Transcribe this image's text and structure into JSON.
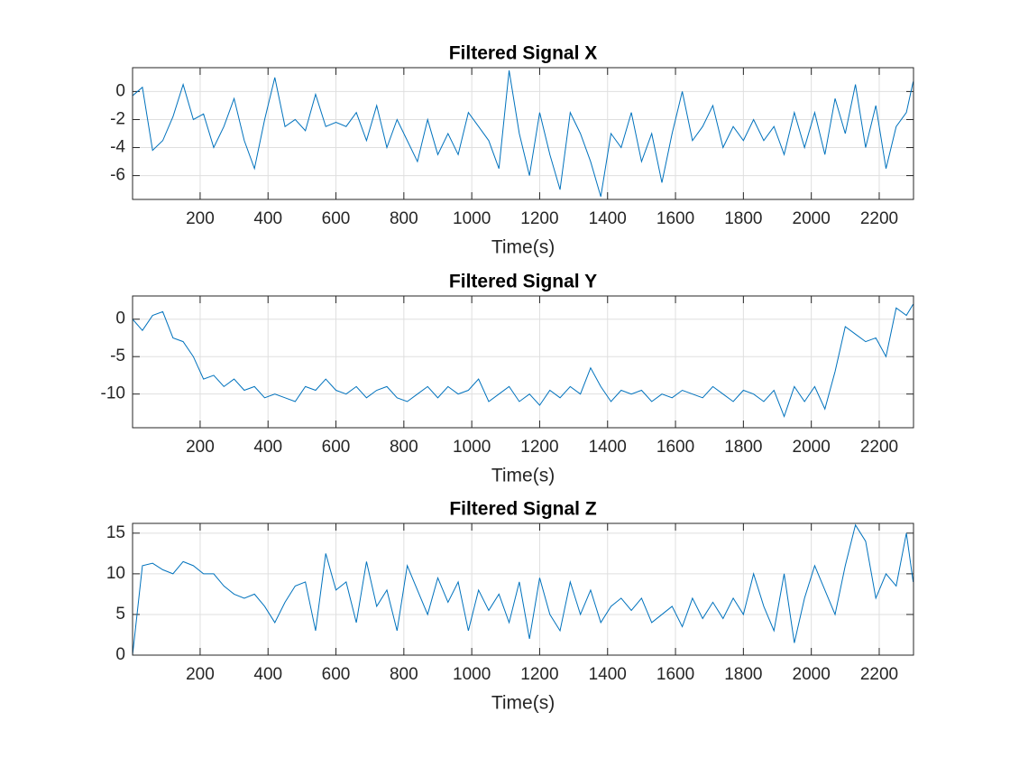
{
  "chart_data": [
    {
      "type": "line",
      "title": "Filtered Signal X",
      "xlabel": "Time(s)",
      "color": "#0072BD",
      "grid": true,
      "xlim": [
        1,
        2301
      ],
      "ylim": [
        -7.7,
        1.7
      ],
      "xticks": [
        200,
        400,
        600,
        800,
        1000,
        1200,
        1400,
        1600,
        1800,
        2000,
        2200
      ],
      "yticks": [
        -6,
        -4,
        -2,
        0
      ],
      "x": [
        1,
        30,
        60,
        90,
        120,
        150,
        180,
        210,
        240,
        270,
        300,
        330,
        360,
        390,
        420,
        450,
        480,
        510,
        540,
        570,
        600,
        630,
        660,
        690,
        720,
        750,
        780,
        810,
        840,
        870,
        900,
        930,
        960,
        990,
        1020,
        1050,
        1080,
        1110,
        1140,
        1170,
        1200,
        1230,
        1260,
        1290,
        1320,
        1350,
        1380,
        1410,
        1440,
        1470,
        1500,
        1530,
        1560,
        1590,
        1620,
        1650,
        1680,
        1710,
        1740,
        1770,
        1800,
        1830,
        1860,
        1890,
        1920,
        1950,
        1980,
        2010,
        2040,
        2070,
        2100,
        2130,
        2160,
        2190,
        2220,
        2250,
        2280,
        2300
      ],
      "values": [
        -0.3,
        0.3,
        -4.2,
        -3.5,
        -1.8,
        0.5,
        -2,
        -1.6,
        -4,
        -2.5,
        -0.5,
        -3.5,
        -5.5,
        -2,
        1,
        -2.5,
        -2,
        -2.8,
        -0.2,
        -2.5,
        -2.2,
        -2.5,
        -1.5,
        -3.5,
        -1,
        -4,
        -2,
        -3.5,
        -5,
        -2,
        -4.5,
        -3,
        -4.5,
        -1.5,
        -2.5,
        -3.5,
        -5.5,
        1.5,
        -3,
        -6,
        -1.5,
        -4.5,
        -7,
        -1.5,
        -3,
        -5,
        -7.5,
        -3,
        -4,
        -1.5,
        -5,
        -3,
        -6.5,
        -3,
        0,
        -3.5,
        -2.5,
        -1,
        -4,
        -2.5,
        -3.5,
        -2,
        -3.5,
        -2.5,
        -4.5,
        -1.5,
        -4,
        -1.5,
        -4.5,
        -0.5,
        -3,
        0.5,
        -4,
        -1,
        -5.5,
        -2.5,
        -1.5,
        0.7
      ]
    },
    {
      "type": "line",
      "title": "Filtered Signal Y",
      "xlabel": "Time(s)",
      "color": "#0072BD",
      "grid": true,
      "xlim": [
        1,
        2301
      ],
      "ylim": [
        -14.5,
        3.1
      ],
      "xticks": [
        200,
        400,
        600,
        800,
        1000,
        1200,
        1400,
        1600,
        1800,
        2000,
        2200
      ],
      "yticks": [
        -10,
        -5,
        0
      ],
      "x": [
        1,
        30,
        60,
        90,
        120,
        150,
        180,
        210,
        240,
        270,
        300,
        330,
        360,
        390,
        420,
        450,
        480,
        510,
        540,
        570,
        600,
        630,
        660,
        690,
        720,
        750,
        780,
        810,
        840,
        870,
        900,
        930,
        960,
        990,
        1020,
        1050,
        1080,
        1110,
        1140,
        1170,
        1200,
        1230,
        1260,
        1290,
        1320,
        1350,
        1380,
        1410,
        1440,
        1470,
        1500,
        1530,
        1560,
        1590,
        1620,
        1650,
        1680,
        1710,
        1740,
        1770,
        1800,
        1830,
        1860,
        1890,
        1920,
        1950,
        1980,
        2010,
        2040,
        2070,
        2100,
        2130,
        2160,
        2190,
        2220,
        2250,
        2280,
        2300
      ],
      "values": [
        0,
        -1.5,
        0.5,
        1,
        -2.5,
        -3,
        -5,
        -8,
        -7.5,
        -9,
        -8,
        -9.5,
        -9,
        -10.5,
        -10,
        -10.5,
        -11,
        -9,
        -9.5,
        -8,
        -9.5,
        -10,
        -9,
        -10.5,
        -9.5,
        -9,
        -10.5,
        -11,
        -10,
        -9,
        -10.5,
        -9,
        -10,
        -9.5,
        -8,
        -11,
        -10,
        -9,
        -11,
        -10,
        -11.5,
        -9.5,
        -10.5,
        -9,
        -10,
        -6.5,
        -9,
        -11,
        -9.5,
        -10,
        -9.5,
        -11,
        -10,
        -10.5,
        -9.5,
        -10,
        -10.5,
        -9,
        -10,
        -11,
        -9.5,
        -10,
        -11,
        -9.5,
        -13,
        -9,
        -11,
        -9,
        -12,
        -7,
        -1,
        -2,
        -3,
        -2.5,
        -5,
        1.5,
        0.5,
        2
      ]
    },
    {
      "type": "line",
      "title": "Filtered Signal Z",
      "xlabel": "Time(s)",
      "color": "#0072BD",
      "grid": true,
      "xlim": [
        1,
        2301
      ],
      "ylim": [
        0,
        16.2
      ],
      "xticks": [
        200,
        400,
        600,
        800,
        1000,
        1200,
        1400,
        1600,
        1800,
        2000,
        2200
      ],
      "yticks": [
        0,
        5,
        10,
        15
      ],
      "x": [
        1,
        30,
        60,
        90,
        120,
        150,
        180,
        210,
        240,
        270,
        300,
        330,
        360,
        390,
        420,
        450,
        480,
        510,
        540,
        570,
        600,
        630,
        660,
        690,
        720,
        750,
        780,
        810,
        840,
        870,
        900,
        930,
        960,
        990,
        1020,
        1050,
        1080,
        1110,
        1140,
        1170,
        1200,
        1230,
        1260,
        1290,
        1320,
        1350,
        1380,
        1410,
        1440,
        1470,
        1500,
        1530,
        1560,
        1590,
        1620,
        1650,
        1680,
        1710,
        1740,
        1770,
        1800,
        1830,
        1860,
        1890,
        1920,
        1950,
        1980,
        2010,
        2040,
        2070,
        2100,
        2130,
        2160,
        2190,
        2220,
        2250,
        2280,
        2300
      ],
      "values": [
        0,
        11,
        11.3,
        10.5,
        10,
        11.5,
        11,
        10,
        10,
        8.5,
        7.5,
        7,
        7.5,
        6,
        4,
        6.5,
        8.5,
        9,
        3,
        12.5,
        8,
        9,
        4,
        11.5,
        6,
        8,
        3,
        11,
        8,
        5,
        9.5,
        6.5,
        9,
        3,
        8,
        5.5,
        7.5,
        4,
        9,
        2,
        9.5,
        5,
        3,
        9,
        5,
        8,
        4,
        6,
        7,
        5.5,
        7,
        4,
        5,
        6,
        3.5,
        7,
        4.5,
        6.5,
        4.5,
        7,
        5,
        10,
        6,
        3,
        10,
        1.5,
        7,
        11,
        8,
        5,
        11,
        16,
        14,
        7,
        10,
        8.5,
        15,
        9
      ]
    }
  ]
}
